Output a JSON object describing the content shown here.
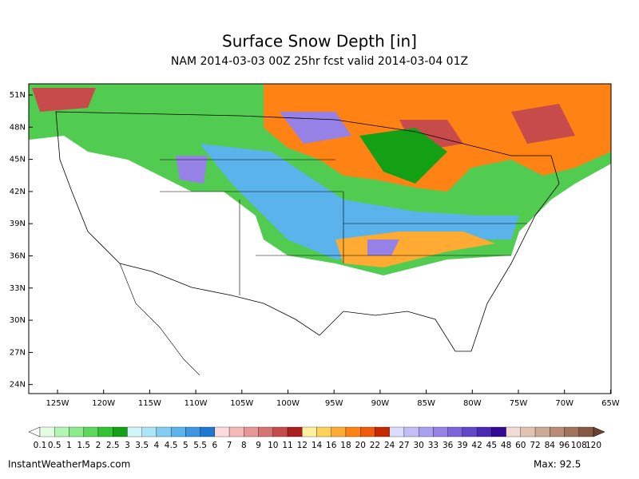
{
  "header": {
    "title": "Surface Snow Depth [in]",
    "subtitle": "NAM 2014-03-03 00Z 25hr fcst valid 2014-03-04 01Z"
  },
  "map": {
    "lat_labels": [
      "51N",
      "48N",
      "45N",
      "42N",
      "39N",
      "36N",
      "33N",
      "30N",
      "27N",
      "24N"
    ],
    "lon_labels": [
      "125W",
      "120W",
      "115W",
      "110W",
      "105W",
      "100W",
      "95W",
      "90W",
      "85W",
      "80W",
      "75W",
      "70W",
      "65W"
    ]
  },
  "colorbar": {
    "levels": [
      "0.1",
      "0.5",
      "1",
      "1.5",
      "2",
      "2.5",
      "3",
      "3.5",
      "4",
      "4.5",
      "5",
      "5.5",
      "6",
      "7",
      "8",
      "9",
      "10",
      "11",
      "12",
      "14",
      "16",
      "18",
      "20",
      "22",
      "24",
      "27",
      "30",
      "33",
      "36",
      "39",
      "42",
      "45",
      "48",
      "60",
      "72",
      "84",
      "96",
      "108",
      "120"
    ],
    "colors": [
      "#e3fde3",
      "#b4f5b4",
      "#8ceb8c",
      "#5ad95a",
      "#32c332",
      "#14a014",
      "#d2f5fa",
      "#aae6f5",
      "#82cdf0",
      "#5ab4eb",
      "#3c96e1",
      "#1e78d2",
      "#fadcdc",
      "#f5b9b9",
      "#e69696",
      "#d77373",
      "#c84b4b",
      "#aa1e1e",
      "#fff0a0",
      "#ffd25a",
      "#ffaa32",
      "#ff8214",
      "#f05a0a",
      "#c82800",
      "#dcdcff",
      "#c3bef5",
      "#aaa0f0",
      "#9682e6",
      "#7d64dc",
      "#6446c8",
      "#4b28b4",
      "#320a96",
      "#f0dcd2",
      "#e1c3b4",
      "#cdaa96",
      "#b98c78",
      "#a0735a",
      "#875a46"
    ],
    "under_color": "#ffffff",
    "over_color": "#6e4132"
  },
  "footer": {
    "source": "InstantWeatherMaps.com",
    "max": "Max:  92.5"
  }
}
